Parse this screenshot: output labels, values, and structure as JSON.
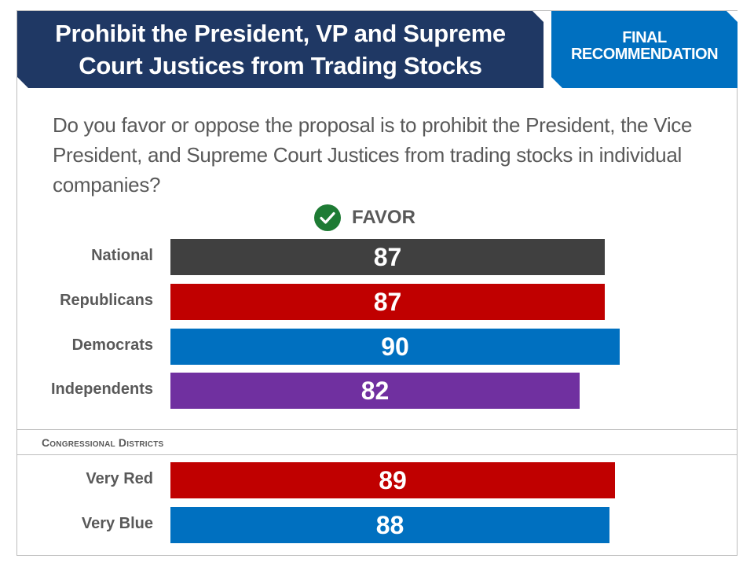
{
  "header": {
    "title": "Prohibit the President, VP and Supreme Court Justices from Trading Stocks",
    "badge_line1": "FINAL",
    "badge_line2": "RECOMMENDATION"
  },
  "question": "Do you favor or oppose the proposal is to prohibit the President, the Vice President, and Supreme Court Justices from trading stocks in individual companies?",
  "favor_label": "FAVOR",
  "section_label": "Congressional Districts",
  "colors": {
    "national": "#404040",
    "republicans": "#c00000",
    "democrats": "#0070c0",
    "independents": "#7030a0",
    "header": "#1f3864",
    "badge": "#0070c0"
  },
  "chart_data": {
    "type": "bar",
    "orientation": "horizontal",
    "title": "FAVOR",
    "xlim": [
      0,
      100
    ],
    "groups": [
      {
        "name": "",
        "categories": [
          "National",
          "Republicans",
          "Democrats",
          "Independents"
        ],
        "values": [
          87,
          87,
          90,
          82
        ],
        "colors": [
          "#404040",
          "#c00000",
          "#0070c0",
          "#7030a0"
        ]
      },
      {
        "name": "Congressional Districts",
        "categories": [
          "Very Red",
          "Very Blue"
        ],
        "values": [
          89,
          88
        ],
        "colors": [
          "#c00000",
          "#0070c0"
        ]
      }
    ]
  }
}
